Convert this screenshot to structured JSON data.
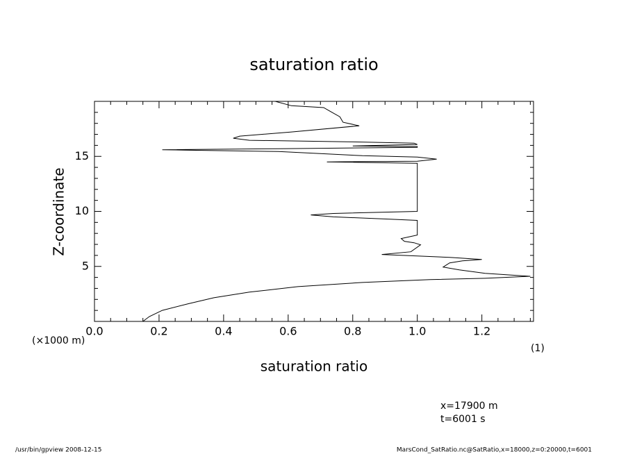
{
  "chart_data": {
    "type": "line",
    "title": "saturation ratio",
    "x_label": "saturation ratio",
    "y_label": "Z-coordinate",
    "x_units": "(1)",
    "y_units": "(×1000 m)",
    "annotations": [
      "x=17900 m",
      "t=6001 s"
    ],
    "footer_left": "/usr/bin/gpview  2008-12-15",
    "footer_right": "MarsCond_SatRatio.nc@SatRatio,x=18000,z=0:20000,t=6001",
    "color": "#000000",
    "xlim": [
      0,
      1.36
    ],
    "ylim": [
      0,
      20
    ],
    "xticks": [
      {
        "value": 0,
        "label": "0.0"
      },
      0.2,
      0.4,
      0.6,
      0.8,
      {
        "value": 1,
        "label": "1.0"
      },
      1.2
    ],
    "yticks": [
      5,
      10,
      15
    ],
    "xticks_minor": [
      0.05,
      0.1,
      0.15,
      0.25,
      0.3,
      0.35,
      0.45,
      0.5,
      0.55,
      0.65,
      0.7,
      0.75,
      0.85,
      0.9,
      0.95,
      1.05,
      1.1,
      1.15,
      1.25,
      1.3,
      1.35
    ],
    "yticks_minor": [
      1,
      2,
      3,
      4,
      6,
      7,
      8,
      9,
      11,
      12,
      13,
      14,
      16,
      17,
      18,
      19
    ],
    "x": [
      0.15,
      0.17,
      0.21,
      0.29,
      0.37,
      0.48,
      0.63,
      0.83,
      1.04,
      1.21,
      1.35,
      1.21,
      1.13,
      1.08,
      1.1,
      1.14,
      1.2,
      1.1,
      1.0,
      0.89,
      0.98,
      1.01,
      0.99,
      0.96,
      0.95,
      0.98,
      1.0,
      1.0,
      1.0,
      0.91,
      0.74,
      0.67,
      0.74,
      1.0,
      1.0,
      1.0,
      0.72,
      1.0,
      1.06,
      1.0,
      0.83,
      0.57,
      0.28,
      0.21,
      0.57,
      1.0,
      1.0,
      0.8,
      1.0,
      0.99,
      0.78,
      0.48,
      0.43,
      0.45,
      0.61,
      0.82,
      0.77,
      0.76,
      0.73,
      0.71,
      0.61,
      0.56
    ],
    "y": [
      0,
      0.44,
      1.0,
      1.6,
      2.15,
      2.66,
      3.16,
      3.54,
      3.8,
      3.92,
      4.1,
      4.37,
      4.68,
      4.94,
      5.32,
      5.5,
      5.63,
      5.82,
      5.95,
      6.08,
      6.33,
      6.96,
      7.15,
      7.28,
      7.53,
      7.72,
      7.85,
      9.0,
      9.18,
      9.3,
      9.5,
      9.68,
      9.81,
      10.0,
      12.78,
      14.37,
      14.5,
      14.56,
      14.75,
      14.94,
      15.06,
      15.44,
      15.57,
      15.6,
      15.7,
      15.82,
      15.89,
      15.95,
      16.08,
      16.2,
      16.33,
      16.46,
      16.65,
      16.84,
      17.22,
      17.78,
      18.1,
      18.6,
      19.1,
      19.43,
      19.6,
      20.0
    ]
  }
}
